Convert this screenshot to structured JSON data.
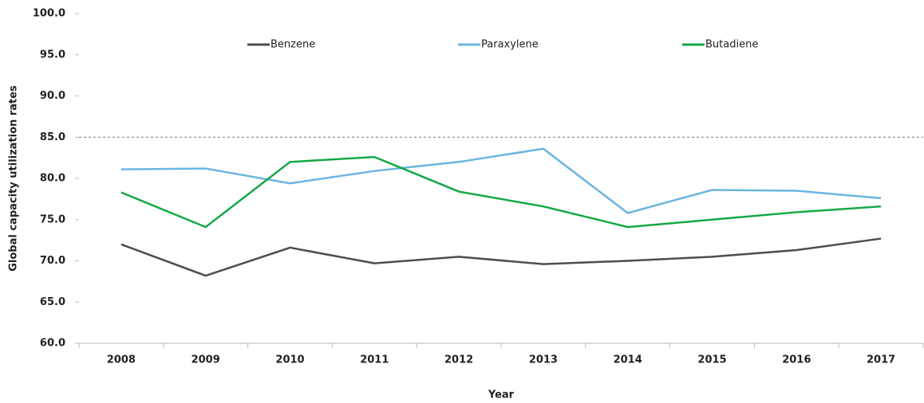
{
  "chart_data": {
    "type": "line",
    "x_label": "Year",
    "y_label": "Global capacity utilization rates",
    "categories": [
      "2008",
      "2009",
      "2010",
      "2011",
      "2012",
      "2013",
      "2014",
      "2015",
      "2016",
      "2017"
    ],
    "series": [
      {
        "name": "Benzene",
        "color": "#4d4d4d",
        "values": [
          72.0,
          68.2,
          71.6,
          69.7,
          70.5,
          69.6,
          70.0,
          70.5,
          71.3,
          72.7
        ]
      },
      {
        "name": "Paraxylene",
        "color": "#6bb5e0",
        "values": [
          81.1,
          81.2,
          79.4,
          80.9,
          82.0,
          83.6,
          75.8,
          78.6,
          78.5,
          77.6
        ]
      },
      {
        "name": "Butadiene",
        "color": "#12a844",
        "values": [
          78.3,
          74.1,
          82.0,
          82.6,
          78.4,
          76.6,
          74.1,
          75.0,
          75.9,
          76.6
        ]
      }
    ],
    "ylim": [
      60,
      100
    ],
    "yticks": [
      {
        "value": 60,
        "label": "60.0"
      },
      {
        "value": 65,
        "label": "65.0"
      },
      {
        "value": 70,
        "label": "70.0"
      },
      {
        "value": 75,
        "label": "75.0"
      },
      {
        "value": 80,
        "label": "80.0"
      },
      {
        "value": 85,
        "label": "85.0"
      },
      {
        "value": 90,
        "label": "90.0"
      },
      {
        "value": 95,
        "label": "95.0"
      },
      {
        "value": 100,
        "label": "100.0"
      }
    ],
    "reference_line": 85,
    "legend": "top",
    "grid": false
  }
}
